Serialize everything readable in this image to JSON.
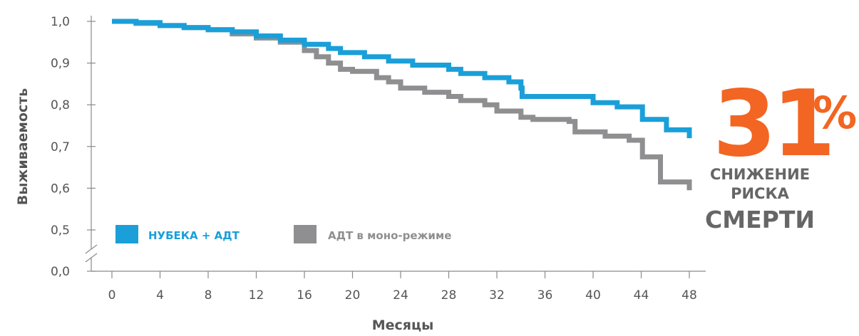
{
  "chart_data": {
    "type": "line",
    "subtype": "kaplan-meier step",
    "title": "",
    "xlabel": "Месяцы",
    "ylabel": "Выживаемость",
    "xlim": [
      0,
      48
    ],
    "ylim": [
      0.5,
      1.0
    ],
    "axis_break": true,
    "x_ticks": [
      "0",
      "4",
      "8",
      "12",
      "16",
      "20",
      "24",
      "28",
      "32",
      "36",
      "40",
      "44",
      "48"
    ],
    "y_ticks": [
      "0,0",
      "0,5",
      "0,6",
      "0,7",
      "0,8",
      "0,9",
      "1,0"
    ],
    "grid": false,
    "legend_position": "bottom-left",
    "series": [
      {
        "name": "НУБЕКА + АДТ",
        "color": "#1a9fd9",
        "points": [
          [
            0,
            1.0
          ],
          [
            2,
            0.997
          ],
          [
            4,
            0.99
          ],
          [
            6,
            0.985
          ],
          [
            8,
            0.98
          ],
          [
            10,
            0.975
          ],
          [
            12,
            0.965
          ],
          [
            14,
            0.955
          ],
          [
            16,
            0.945
          ],
          [
            18,
            0.935
          ],
          [
            19,
            0.925
          ],
          [
            21,
            0.915
          ],
          [
            23,
            0.905
          ],
          [
            25,
            0.895
          ],
          [
            28,
            0.885
          ],
          [
            29,
            0.875
          ],
          [
            31,
            0.865
          ],
          [
            33,
            0.855
          ],
          [
            34,
            0.84
          ],
          [
            34.1,
            0.82
          ],
          [
            39,
            0.82
          ],
          [
            40,
            0.805
          ],
          [
            42,
            0.795
          ],
          [
            44,
            0.795
          ],
          [
            44.1,
            0.765
          ],
          [
            46,
            0.765
          ],
          [
            46.1,
            0.74
          ],
          [
            48,
            0.74
          ],
          [
            48,
            0.72
          ]
        ]
      },
      {
        "name": "АДТ в моно-режиме",
        "color": "#8f8f91",
        "points": [
          [
            0,
            1.0
          ],
          [
            2,
            0.995
          ],
          [
            4,
            0.99
          ],
          [
            6,
            0.985
          ],
          [
            8,
            0.98
          ],
          [
            10,
            0.97
          ],
          [
            12,
            0.96
          ],
          [
            14,
            0.95
          ],
          [
            16,
            0.93
          ],
          [
            17,
            0.915
          ],
          [
            18,
            0.9
          ],
          [
            19,
            0.885
          ],
          [
            20,
            0.88
          ],
          [
            22,
            0.865
          ],
          [
            23,
            0.855
          ],
          [
            24,
            0.84
          ],
          [
            26,
            0.83
          ],
          [
            28,
            0.82
          ],
          [
            29,
            0.81
          ],
          [
            31,
            0.8
          ],
          [
            32,
            0.785
          ],
          [
            34,
            0.77
          ],
          [
            35,
            0.765
          ],
          [
            38,
            0.76
          ],
          [
            38.5,
            0.735
          ],
          [
            41,
            0.725
          ],
          [
            43,
            0.715
          ],
          [
            44,
            0.715
          ],
          [
            44.1,
            0.675
          ],
          [
            45.5,
            0.675
          ],
          [
            45.6,
            0.615
          ],
          [
            48,
            0.615
          ],
          [
            48,
            0.595
          ]
        ]
      }
    ]
  },
  "legend": [
    {
      "label": "НУБЕКА + АДТ",
      "color": "#1a9fd9",
      "text_color": "#1a9fd9"
    },
    {
      "label": "АДТ в моно-режиме",
      "color": "#8f8f91",
      "text_color": "#8f8f91"
    }
  ],
  "callout": {
    "value": "31",
    "unit": "%",
    "line1": "СНИЖЕНИЕ",
    "line2": "РИСКА",
    "line3": "СМЕРТИ",
    "color": "#f26522"
  },
  "colors": {
    "axis": "#8a8a8a",
    "text": "#555555"
  }
}
